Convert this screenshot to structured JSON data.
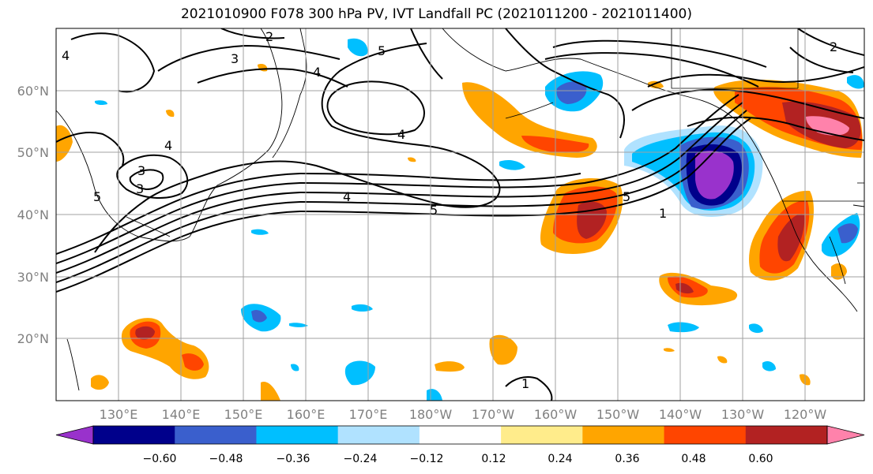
{
  "title": "2021010900 F078 300 hPa PV, IVT Landfall PC (2021011200 - 2021011400)",
  "lat_labels": [
    "60°N",
    "50°N",
    "40°N",
    "30°N",
    "20°N"
  ],
  "lon_labels": [
    "130°E",
    "140°E",
    "150°E",
    "160°E",
    "170°E",
    "180°W",
    "170°W",
    "160°W",
    "150°W",
    "140°W",
    "130°W",
    "120°W"
  ],
  "colorbar": {
    "ticks": [
      "−0.60",
      "−0.48",
      "−0.36",
      "−0.24",
      "−0.12",
      "0.12",
      "0.24",
      "0.36",
      "0.48",
      "0.60"
    ],
    "colors": [
      "#9932CC",
      "#00008B",
      "#3A5FCD",
      "#00BFFF",
      "#B0E2FF",
      "#FFFFFF",
      "#FFEC8B",
      "#FFA500",
      "#FF4500",
      "#B22222",
      "#FF82AB"
    ]
  },
  "contour_labels": [
    "2",
    "3",
    "4",
    "5",
    "4",
    "4",
    "3",
    "3",
    "5",
    "4",
    "5",
    "5",
    "1",
    "1",
    "4",
    "2"
  ]
}
